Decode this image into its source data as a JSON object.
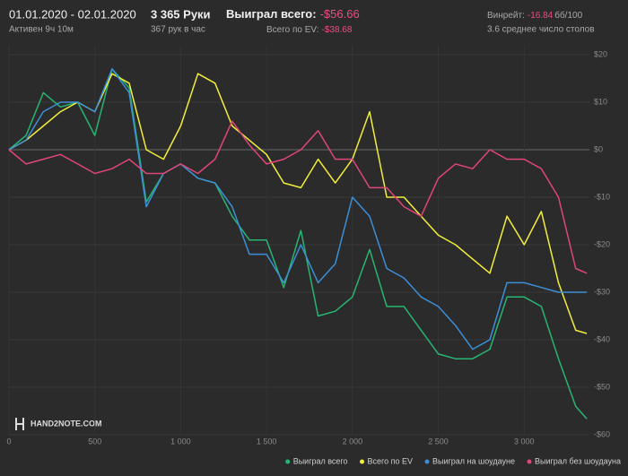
{
  "header": {
    "date_range": "01.01.2020 - 02.01.2020",
    "active": "Активен 9ч 10м",
    "hands": "3 365 Руки",
    "hands_per_hour": "367 рук в час",
    "won_label": "Выиграл всего:",
    "won_value": "-$56.66",
    "ev_label": "Всего по EV:",
    "ev_value": "-$38.68",
    "winrate_label": "Винрейт:",
    "winrate_value": "-16.84",
    "winrate_unit": "бб/100",
    "tables": "3.6 среднее число столов"
  },
  "logo": "HAND2NOTE.COM",
  "chart_data": {
    "type": "line",
    "x": [
      0,
      100,
      200,
      300,
      400,
      500,
      600,
      700,
      800,
      900,
      1000,
      1100,
      1200,
      1300,
      1400,
      1500,
      1600,
      1700,
      1800,
      1900,
      2000,
      2100,
      2200,
      2300,
      2400,
      2500,
      2600,
      2700,
      2800,
      2900,
      3000,
      3100,
      3200,
      3300,
      3365
    ],
    "series": [
      {
        "name": "Выиграл всего",
        "color": "#27b572",
        "values": [
          0,
          3,
          12,
          9,
          10,
          3,
          17,
          13,
          -11,
          -5,
          -3,
          -6,
          -7,
          -14,
          -19,
          -19,
          -29,
          -17,
          -35,
          -34,
          -31,
          -21,
          -33,
          -33,
          -38,
          -43,
          -44,
          -44,
          -42,
          -31,
          -31,
          -33,
          -44,
          -54,
          -56.66
        ]
      },
      {
        "name": "Всего по EV",
        "color": "#f2ee3a",
        "values": [
          0,
          2,
          5,
          8,
          10,
          8,
          16,
          14,
          0,
          -2,
          5,
          16,
          14,
          5,
          2,
          -1,
          -7,
          -8,
          -2,
          -7,
          -2,
          8,
          -10,
          -10,
          -14,
          -18,
          -20,
          -23,
          -26,
          -14,
          -20,
          -13,
          -28,
          -38,
          -38.68
        ]
      },
      {
        "name": "Выиграл на шоудауне",
        "color": "#3c8fd6",
        "values": [
          0,
          2,
          8,
          10,
          10,
          8,
          17,
          12,
          -12,
          -5,
          -3,
          -6,
          -7,
          -12,
          -22,
          -22,
          -28,
          -20,
          -28,
          -24,
          -10,
          -14,
          -25,
          -27,
          -31,
          -33,
          -37,
          -42,
          -40,
          -28,
          -28,
          -29,
          -30,
          -30,
          -30
        ]
      },
      {
        "name": "Выиграл без шоудауна",
        "color": "#e0457b",
        "values": [
          0,
          -3,
          -2,
          -1,
          -3,
          -5,
          -4,
          -2,
          -5,
          -5,
          -3,
          -5,
          -2,
          6,
          1,
          -3,
          -2,
          0,
          4,
          -2,
          -2,
          -8,
          -8,
          -12,
          -14,
          -6,
          -3,
          -4,
          0,
          -2,
          -2,
          -4,
          -10,
          -25,
          -26
        ]
      }
    ],
    "xlim": [
      0,
      3380
    ],
    "ylim": [
      -60,
      22
    ],
    "xticks": [
      0,
      500,
      {
        "value": 1000,
        "label": "1 000"
      },
      {
        "value": 1500,
        "label": "1 500"
      },
      {
        "value": 2000,
        "label": "2 000"
      },
      {
        "value": 2500,
        "label": "2 500"
      },
      {
        "value": 3000,
        "label": "3 000"
      }
    ],
    "yticks": [
      {
        "value": 20,
        "label": "$20"
      },
      {
        "value": 10,
        "label": "$10"
      },
      {
        "value": 0,
        "label": "$0"
      },
      {
        "value": -10,
        "label": "-$10"
      },
      {
        "value": -20,
        "label": "-$20"
      },
      {
        "value": -30,
        "label": "-$30"
      },
      {
        "value": -40,
        "label": "-$40"
      },
      {
        "value": -50,
        "label": "-$50"
      },
      {
        "value": -60,
        "label": "-$60"
      }
    ],
    "grid": true,
    "legend": "bottom-right"
  }
}
